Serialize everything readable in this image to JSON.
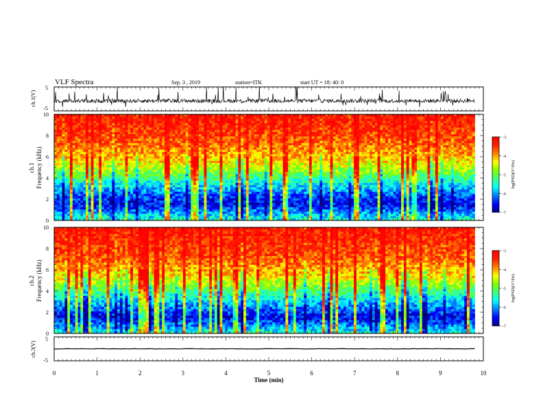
{
  "header": {
    "title": "VLF Spectra",
    "date": "Sep. 3  , 2019",
    "station": "station=ITK",
    "start": "start UT =  18: 40: 0"
  },
  "colors": {
    "colormap": [
      "#00007f",
      "#0000ff",
      "#0080ff",
      "#00ffff",
      "#40ff80",
      "#80ff00",
      "#ffff00",
      "#ff8000",
      "#ff2000",
      "#ff0000"
    ],
    "trace": "#000000"
  },
  "chart_data": [
    {
      "type": "line",
      "panel": "ch1_waveform",
      "ylabel": "ch.1(V)",
      "ylim": [
        -5,
        5
      ],
      "xlim": [
        0,
        10
      ],
      "yticks": [
        "5",
        "-5"
      ],
      "x_extent": [
        0,
        9.8
      ],
      "baseline": -0.8,
      "series": [
        {
          "values": [
            -0.8
          ]
        }
      ]
    },
    {
      "type": "heatmap",
      "panel": "ch1_spectrogram",
      "ylabel": "ch.1\nFrequency (kHz)",
      "ylim": [
        0,
        10
      ],
      "xlim": [
        0,
        10
      ],
      "yticks": [
        "0",
        "2",
        "4",
        "6",
        "8",
        "10"
      ],
      "x_extent": [
        0,
        9.8
      ],
      "colorbar": {
        "label": "log(PSD)(V²/Hz)",
        "range": [
          -7,
          -3
        ],
        "ticks": [
          "-3",
          "-4",
          "-5",
          "-6",
          "-7"
        ]
      },
      "profile_log_psd": [
        {
          "freq_khz": 0.0,
          "log_psd": -5.5
        },
        {
          "freq_khz": 0.5,
          "log_psd": -5.8
        },
        {
          "freq_khz": 1.5,
          "log_psd": -6.6
        },
        {
          "freq_khz": 2.5,
          "log_psd": -6.2
        },
        {
          "freq_khz": 3.5,
          "log_psd": -5.6
        },
        {
          "freq_khz": 4.5,
          "log_psd": -4.9
        },
        {
          "freq_khz": 5.5,
          "log_psd": -4.3
        },
        {
          "freq_khz": 7.0,
          "log_psd": -3.8
        },
        {
          "freq_khz": 9.0,
          "log_psd": -3.4
        },
        {
          "freq_khz": 10.0,
          "log_psd": -3.3
        }
      ]
    },
    {
      "type": "heatmap",
      "panel": "ch2_spectrogram",
      "ylabel": "ch.2\nFrequency (kHz)",
      "ylim": [
        0,
        10
      ],
      "xlim": [
        0,
        10
      ],
      "yticks": [
        "0",
        "2",
        "4",
        "6",
        "8",
        "10"
      ],
      "x_extent": [
        0,
        9.8
      ],
      "colorbar": {
        "label": "log(PSD)(V²/Hz)",
        "range": [
          -7,
          -3
        ],
        "ticks": [
          "-3",
          "-4",
          "-5",
          "-6",
          "-7"
        ]
      },
      "profile_log_psd": [
        {
          "freq_khz": 0.0,
          "log_psd": -5.4
        },
        {
          "freq_khz": 0.5,
          "log_psd": -5.9
        },
        {
          "freq_khz": 1.5,
          "log_psd": -6.6
        },
        {
          "freq_khz": 2.5,
          "log_psd": -6.1
        },
        {
          "freq_khz": 3.5,
          "log_psd": -5.5
        },
        {
          "freq_khz": 4.5,
          "log_psd": -4.8
        },
        {
          "freq_khz": 5.5,
          "log_psd": -4.2
        },
        {
          "freq_khz": 7.0,
          "log_psd": -3.7
        },
        {
          "freq_khz": 9.0,
          "log_psd": -3.4
        },
        {
          "freq_khz": 10.0,
          "log_psd": -3.3
        }
      ]
    },
    {
      "type": "line",
      "panel": "ch3_waveform",
      "ylabel": "ch.3(V)",
      "ylim": [
        -5,
        5
      ],
      "xlim": [
        0,
        10
      ],
      "yticks": [
        "5",
        "-5"
      ],
      "x_extent": [
        0,
        9.8
      ],
      "baseline": 0,
      "series": [
        {
          "values": [
            0
          ]
        }
      ]
    }
  ],
  "xaxis": {
    "label": "Time (min)",
    "ticks": [
      "0",
      "1",
      "2",
      "3",
      "4",
      "5",
      "6",
      "7",
      "8",
      "9",
      "10"
    ]
  }
}
